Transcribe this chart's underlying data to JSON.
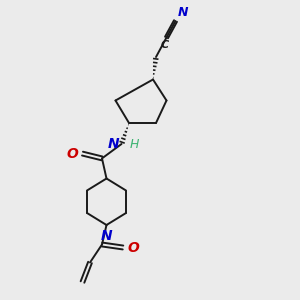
{
  "bg_color": "#ebebeb",
  "bond_color": "#1a1a1a",
  "N_color": "#0000cc",
  "O_color": "#cc0000",
  "C_color": "#1a1a1a",
  "H_color": "#3cb371",
  "figsize": [
    3.0,
    3.0
  ],
  "dpi": 100,
  "xlim": [
    0,
    10
  ],
  "ylim": [
    0,
    10
  ]
}
